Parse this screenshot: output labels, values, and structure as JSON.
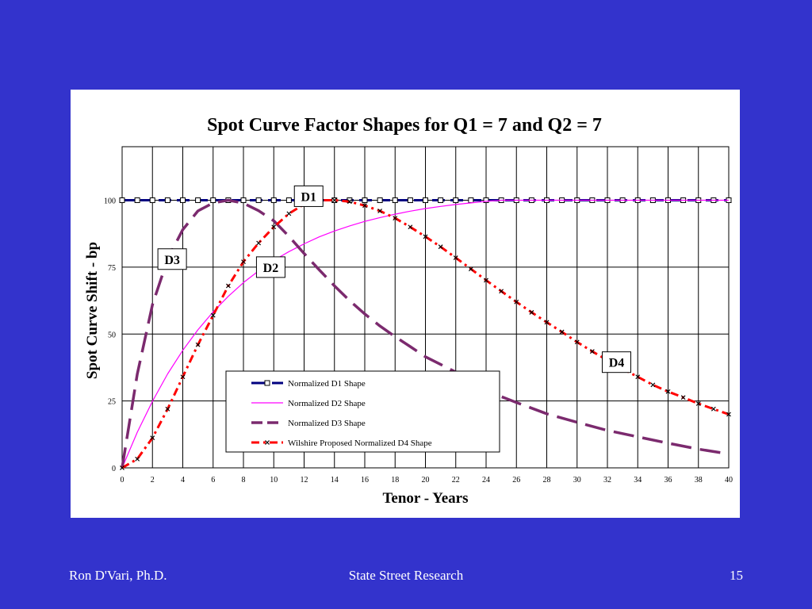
{
  "colors": {
    "background": "#3333cc",
    "panel": "#ffffff",
    "d1": "#000080",
    "d2": "#ff00ff",
    "d3": "#7b2a6e",
    "d4": "#ff0000"
  },
  "footer": {
    "left": "Ron D'Vari, Ph.D.",
    "center": "State Street Research",
    "right": "15"
  },
  "chart_data": {
    "type": "line",
    "title": "Spot Curve Factor Shapes for Q1 = 7 and  Q2 = 7",
    "xlabel": "Tenor - Years",
    "ylabel": "Spot Curve Shift - bp",
    "xlim": [
      0,
      40
    ],
    "ylim": [
      0,
      120
    ],
    "x_ticks": [
      "0",
      "2",
      "4",
      "6",
      "8",
      "10",
      "12",
      "14",
      "16",
      "18",
      "20",
      "22",
      "24",
      "26",
      "28",
      "30",
      "32",
      "34",
      "36",
      "38",
      "40"
    ],
    "y_ticks": [
      "0",
      "25",
      "50",
      "75",
      "100"
    ],
    "grid": true,
    "legend_position": "bottom-center",
    "series": [
      {
        "name": "Normalized D1 Shape",
        "key": "d1",
        "x": [
          0,
          1,
          2,
          3,
          4,
          5,
          6,
          7,
          8,
          9,
          10,
          11,
          12,
          13,
          14,
          15,
          16,
          17,
          18,
          19,
          20,
          21,
          22,
          23,
          24,
          25,
          26,
          27,
          28,
          29,
          30,
          31,
          32,
          33,
          34,
          35,
          36,
          37,
          38,
          39,
          40
        ],
        "y": [
          100,
          100,
          100,
          100,
          100,
          100,
          100,
          100,
          100,
          100,
          100,
          100,
          100,
          100,
          100,
          100,
          100,
          100,
          100,
          100,
          100,
          100,
          100,
          100,
          100,
          100,
          100,
          100,
          100,
          100,
          100,
          100,
          100,
          100,
          100,
          100,
          100,
          100,
          100,
          100,
          100
        ]
      },
      {
        "name": "Normalized D2 Shape",
        "key": "d2",
        "x": [
          0,
          1,
          2,
          3,
          4,
          5,
          6,
          7,
          8,
          9,
          10,
          11,
          12,
          13,
          14,
          15,
          16,
          17,
          18,
          19,
          20,
          21,
          22,
          23,
          24,
          25,
          26,
          27,
          28,
          29,
          30,
          31,
          32,
          33,
          34,
          35,
          36,
          37,
          38,
          39,
          40
        ],
        "y": [
          0,
          13.3,
          24.9,
          35.1,
          43.9,
          51.6,
          58.3,
          64.1,
          69.2,
          73.6,
          77.5,
          80.8,
          83.7,
          86.3,
          88.5,
          90.4,
          92.1,
          93.5,
          94.8,
          95.9,
          96.9,
          97.7,
          98.4,
          99.0,
          99.6,
          100,
          100,
          100,
          100,
          100,
          100,
          100,
          100,
          100,
          100,
          100,
          100,
          100,
          100,
          100,
          100
        ]
      },
      {
        "name": "Normalized D3 Shape",
        "key": "d3",
        "x": [
          0,
          1,
          2,
          3,
          4,
          5,
          6,
          7,
          8,
          9,
          10,
          11,
          12,
          13,
          14,
          15,
          16,
          17,
          18,
          19,
          20,
          22,
          24,
          26,
          28,
          30,
          32,
          34,
          36,
          38,
          40
        ],
        "y": [
          0,
          35,
          61,
          78,
          89,
          96,
          99,
          100,
          98.9,
          96.1,
          92.3,
          86.5,
          80.1,
          74.0,
          68.0,
          62.5,
          57.5,
          53.0,
          49.0,
          45.3,
          41.5,
          35.8,
          28.8,
          24.4,
          20.2,
          17.0,
          14.0,
          11.6,
          9.2,
          7.0,
          5.2
        ]
      },
      {
        "name": "Wilshire Proposed Normalized D4 Shape",
        "key": "d4",
        "x": [
          0,
          1,
          2,
          3,
          4,
          5,
          6,
          7,
          8,
          9,
          10,
          11,
          12,
          13,
          14,
          15,
          16,
          17,
          18,
          19,
          20,
          21,
          22,
          23,
          24,
          25,
          26,
          27,
          28,
          29,
          30,
          31,
          32,
          33,
          34,
          35,
          36,
          37,
          38,
          39,
          40
        ],
        "y": [
          0,
          3.3,
          11.2,
          22.0,
          34.0,
          46.0,
          57.0,
          68.0,
          77.0,
          84.0,
          90.0,
          95.0,
          98.5,
          100,
          100,
          99.5,
          98.0,
          96.0,
          93.3,
          90.0,
          86.4,
          82.6,
          78.5,
          74.3,
          70.1,
          66.0,
          62.0,
          58.1,
          54.4,
          50.8,
          47.0,
          43.5,
          40.2,
          37.0,
          34.0,
          31.0,
          28.5,
          26.3,
          24.0,
          22.0,
          20.0
        ]
      }
    ],
    "annotations": [
      {
        "text": "D1",
        "x": 12.3,
        "y": 101.5
      },
      {
        "text": "D2",
        "x": 9.8,
        "y": 75
      },
      {
        "text": "D3",
        "x": 3.3,
        "y": 78
      },
      {
        "text": "D4",
        "x": 32.6,
        "y": 39.5
      }
    ]
  }
}
